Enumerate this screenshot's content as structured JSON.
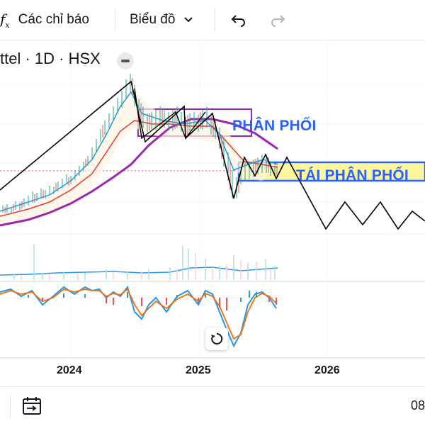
{
  "toolbar": {
    "indicator_icon": "function-icon",
    "indicators_label": "Các chỉ báo",
    "chart_label": "Biểu đồ",
    "undo_icon": "undo-icon",
    "redo_icon": "redo-icon"
  },
  "symbol": {
    "title": "ttel · 1D · HSX"
  },
  "annotations": {
    "distribution": "PHÂN PHỐI",
    "redistribution": "TÁI PHÂN PHỐI"
  },
  "x_axis": {
    "labels": [
      "2024",
      "2025",
      "2026"
    ]
  },
  "bottom": {
    "date_range_icon": "calendar-icon",
    "timer_partial": "08"
  },
  "colors": {
    "blue_accent": "#2962ff",
    "purple": "#9c27b0",
    "highlight_yellow": "#fff59d",
    "up_candle": "#26a69a",
    "down_candle": "#ef5350"
  }
}
